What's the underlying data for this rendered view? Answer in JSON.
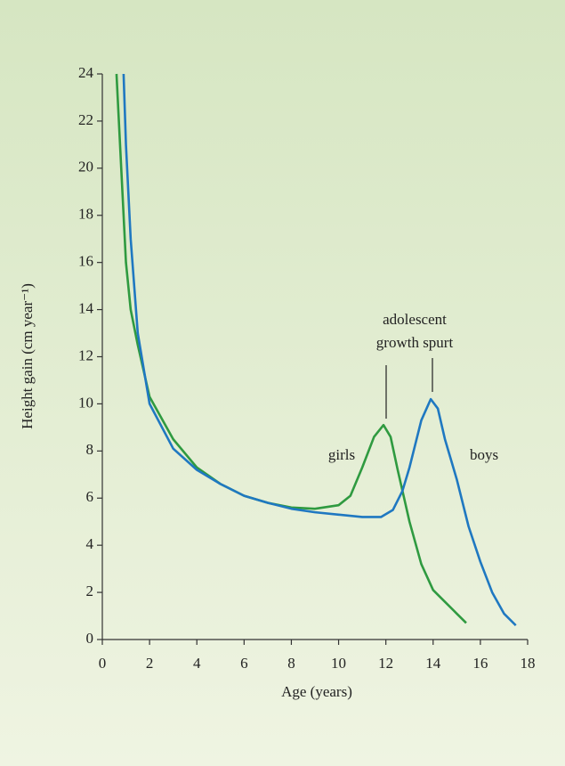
{
  "chart_data": {
    "type": "line",
    "xlabel": "Age (years)",
    "ylabel": "Height gain (cm year⁻¹)",
    "annotation": [
      "adolescent",
      "growth spurt"
    ],
    "xlim": [
      0,
      18
    ],
    "xticks": [
      0,
      2,
      4,
      6,
      8,
      10,
      12,
      14,
      16,
      18
    ],
    "ylim": [
      0,
      24
    ],
    "yticks": [
      0,
      2,
      4,
      6,
      8,
      10,
      12,
      14,
      16,
      18,
      20,
      22,
      24
    ],
    "grid": false,
    "series": [
      {
        "name": "girls",
        "color": "#2f9a40",
        "x": [
          0.6,
          0.8,
          1,
          1.2,
          1.5,
          2,
          3,
          4,
          5,
          6,
          7,
          8,
          9,
          10,
          10.5,
          11,
          11.5,
          11.9,
          12.2,
          12.5,
          13,
          13.5,
          14,
          14.5,
          15,
          15.4
        ],
        "values": [
          24,
          20,
          16,
          14,
          12.5,
          10.3,
          8.5,
          7.3,
          6.6,
          6.1,
          5.8,
          5.6,
          5.55,
          5.7,
          6.1,
          7.3,
          8.6,
          9.1,
          8.6,
          7.2,
          5.0,
          3.2,
          2.1,
          1.6,
          1.1,
          0.7
        ]
      },
      {
        "name": "boys",
        "color": "#1f78c1",
        "x": [
          0.9,
          1,
          1.2,
          1.5,
          2,
          3,
          4,
          5,
          6,
          7,
          8,
          9,
          10,
          11,
          11.8,
          12.3,
          12.7,
          13,
          13.5,
          13.9,
          14.2,
          14.5,
          15,
          15.5,
          16,
          16.5,
          17,
          17.5
        ],
        "values": [
          24,
          21,
          17,
          13,
          10,
          8.1,
          7.2,
          6.6,
          6.1,
          5.8,
          5.55,
          5.4,
          5.3,
          5.2,
          5.2,
          5.5,
          6.3,
          7.3,
          9.3,
          10.2,
          9.8,
          8.5,
          6.8,
          4.8,
          3.3,
          2.0,
          1.1,
          0.6
        ]
      }
    ]
  }
}
